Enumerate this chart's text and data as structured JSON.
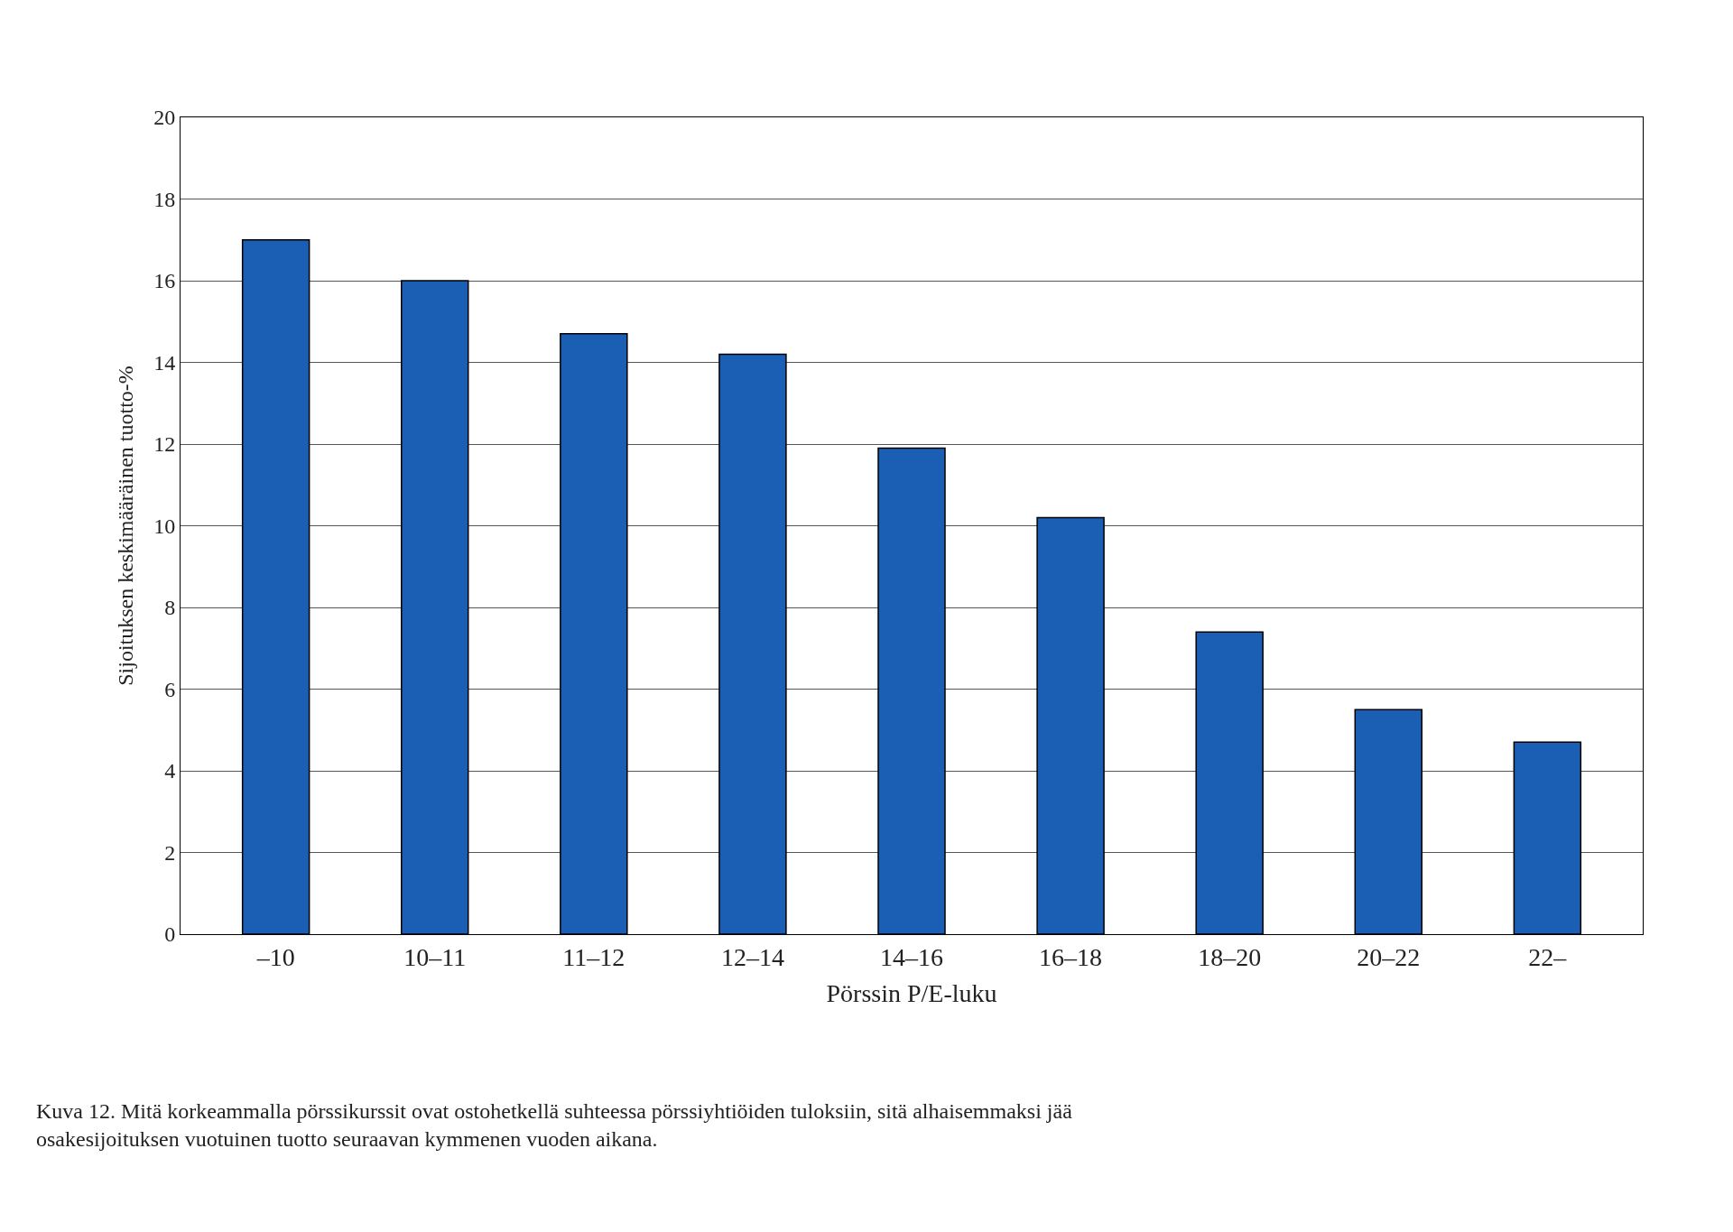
{
  "chart_data": {
    "type": "bar",
    "xlabel": "Pörssin P/E-luku",
    "ylabel": "Sijoituksen keskimääräinen tuotto-%",
    "categories": [
      "–10",
      "10–11",
      "11–12",
      "12–14",
      "14–16",
      "16–18",
      "18–20",
      "20–22",
      "22–"
    ],
    "values": [
      17.0,
      16.0,
      14.7,
      14.2,
      11.9,
      10.2,
      7.4,
      5.5,
      4.7
    ],
    "color": "#1a5fb4",
    "ylim": [
      0,
      20
    ],
    "yticks": [
      0,
      2,
      4,
      6,
      8,
      10,
      12,
      14,
      16,
      18,
      20
    ],
    "grid": "y",
    "annotations": [
      "Kuva 12. Mitä korkeammalla pörssikurssit ovat ostohetkellä suhteessa pörssiyhtiöiden tuloksiin, sitä alhaisemmaksi jää osakesijoituksen vuotuinen tuotto seuraavan kymmenen vuoden aikana."
    ]
  }
}
